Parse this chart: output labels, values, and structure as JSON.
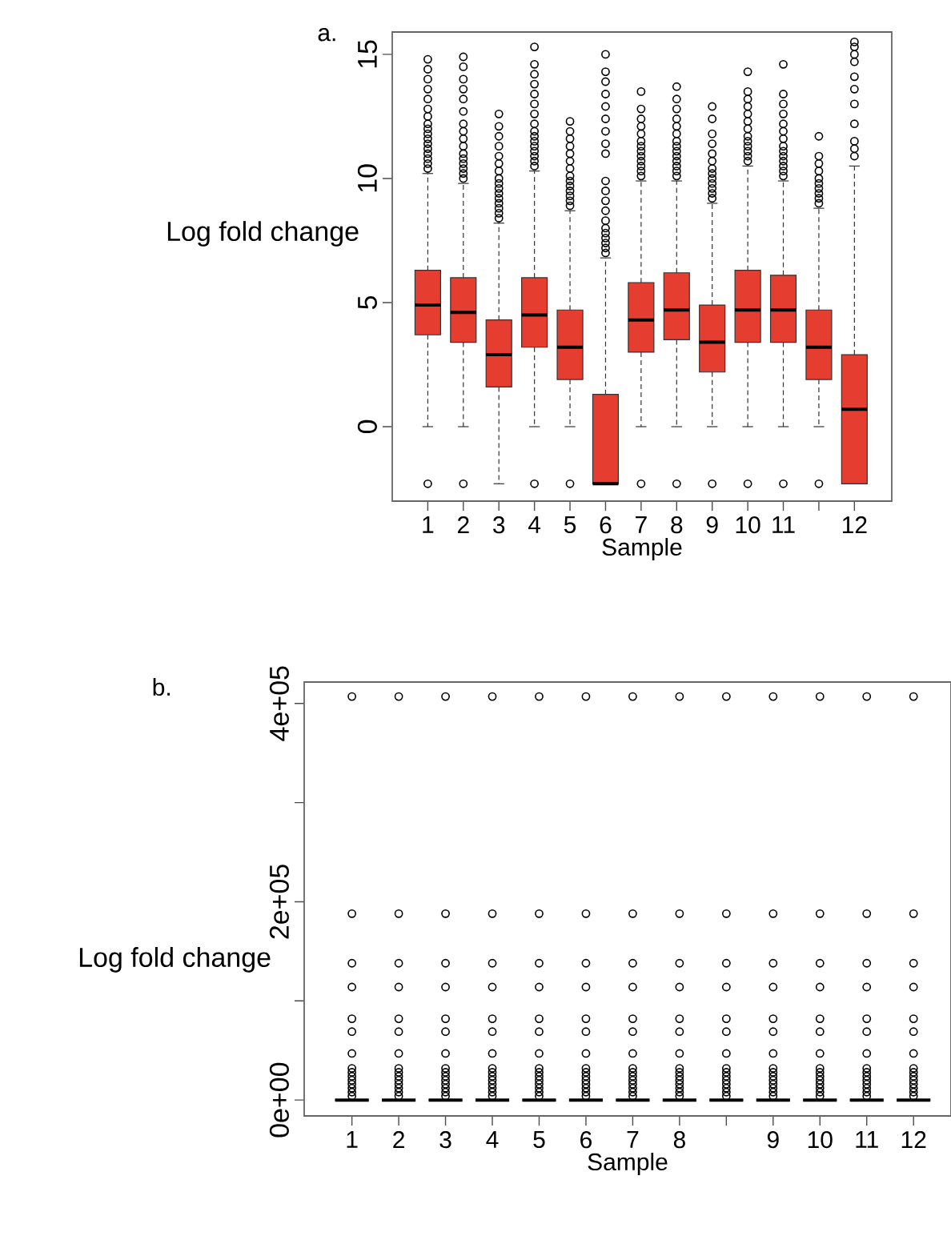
{
  "chart_data": [
    {
      "type": "box",
      "title": "a.",
      "xlabel": "Sample",
      "ylabel": "Log fold change",
      "color": "#e53e30",
      "categories": [
        "1",
        "2",
        "3",
        "4",
        "5",
        "6",
        "7",
        "8",
        "9",
        "10",
        "11",
        null,
        "12"
      ],
      "ylim": [
        -3,
        15.9
      ],
      "yticks": [
        0,
        5,
        10,
        15
      ],
      "boxes": [
        {
          "low": 0,
          "q1": 3.7,
          "median": 4.9,
          "q3": 6.3,
          "high": 10.2,
          "outliers": [
            -2.3,
            10.4,
            10.6,
            10.8,
            11,
            11.2,
            11.4,
            11.6,
            11.8,
            12,
            12.2,
            12.5,
            12.8,
            13.2,
            13.6,
            14,
            14.4,
            14.8
          ]
        },
        {
          "low": 0,
          "q1": 3.4,
          "median": 4.6,
          "q3": 6.0,
          "high": 9.8,
          "outliers": [
            -2.3,
            10,
            10.2,
            10.4,
            10.6,
            10.8,
            11,
            11.3,
            11.6,
            11.9,
            12.2,
            12.7,
            13.2,
            13.6,
            14,
            14.5,
            14.9
          ]
        },
        {
          "low": -2.3,
          "q1": 1.6,
          "median": 2.9,
          "q3": 4.3,
          "high": 8.2,
          "outliers": [
            8.4,
            8.6,
            8.8,
            9,
            9.2,
            9.4,
            9.6,
            9.8,
            10,
            10.3,
            10.6,
            10.9,
            11.3,
            11.7,
            12.1,
            12.6
          ]
        },
        {
          "low": 0,
          "q1": 3.2,
          "median": 4.5,
          "q3": 6.0,
          "high": 10.3,
          "outliers": [
            -2.3,
            10.5,
            10.7,
            10.9,
            11.1,
            11.3,
            11.5,
            11.7,
            11.9,
            12.2,
            12.6,
            13,
            13.4,
            13.8,
            14.2,
            14.6,
            15.3
          ]
        },
        {
          "low": 0,
          "q1": 1.9,
          "median": 3.2,
          "q3": 4.7,
          "high": 8.7,
          "outliers": [
            -2.3,
            8.9,
            9.1,
            9.3,
            9.5,
            9.7,
            9.9,
            10.1,
            10.4,
            10.7,
            11,
            11.3,
            11.6,
            11.9,
            12.3
          ]
        },
        {
          "low": -2.3,
          "q1": -2.3,
          "median": -2.3,
          "q3": 1.3,
          "high": 6.8,
          "outliers": [
            7,
            7.2,
            7.4,
            7.6,
            7.8,
            8,
            8.3,
            8.7,
            9.1,
            9.5,
            9.9,
            11,
            11.4,
            11.9,
            12.4,
            12.9,
            13.4,
            13.9,
            14.3,
            15
          ]
        },
        {
          "low": 0,
          "q1": 3.0,
          "median": 4.3,
          "q3": 5.8,
          "high": 9.9,
          "outliers": [
            -2.3,
            10.1,
            10.3,
            10.5,
            10.7,
            10.9,
            11.1,
            11.3,
            11.5,
            11.8,
            12.1,
            12.4,
            12.8,
            13.5
          ]
        },
        {
          "low": 0,
          "q1": 3.5,
          "median": 4.7,
          "q3": 6.2,
          "high": 9.9,
          "outliers": [
            -2.3,
            10.1,
            10.3,
            10.5,
            10.7,
            10.9,
            11.1,
            11.3,
            11.5,
            11.8,
            12.1,
            12.4,
            12.8,
            13.2,
            13.7
          ]
        },
        {
          "low": 0,
          "q1": 2.2,
          "median": 3.4,
          "q3": 4.9,
          "high": 9.0,
          "outliers": [
            -2.3,
            9.2,
            9.4,
            9.6,
            9.8,
            10,
            10.2,
            10.4,
            10.7,
            11,
            11.4,
            11.8,
            12.4,
            12.9
          ]
        },
        {
          "low": 0,
          "q1": 3.4,
          "median": 4.7,
          "q3": 6.3,
          "high": 10.5,
          "outliers": [
            -2.3,
            10.7,
            10.9,
            11.1,
            11.3,
            11.5,
            11.7,
            12,
            12.3,
            12.6,
            12.9,
            13.2,
            13.5,
            14.3
          ]
        },
        {
          "low": 0,
          "q1": 3.4,
          "median": 4.7,
          "q3": 6.1,
          "high": 9.9,
          "outliers": [
            -2.3,
            10.1,
            10.3,
            10.5,
            10.7,
            10.9,
            11.1,
            11.3,
            11.6,
            11.9,
            12.2,
            12.6,
            13,
            13.4,
            14.6
          ]
        },
        {
          "low": 0,
          "q1": 1.9,
          "median": 3.2,
          "q3": 4.7,
          "high": 8.8,
          "outliers": [
            -2.3,
            9,
            9.2,
            9.4,
            9.6,
            9.8,
            10,
            10.3,
            10.6,
            10.9,
            11.7
          ]
        },
        {
          "low": -2.3,
          "q1": -2.3,
          "median": 0.7,
          "q3": 2.9,
          "high": 10.5,
          "outliers": [
            10.9,
            11.2,
            11.5,
            12.2,
            13,
            13.6,
            14.1,
            14.7,
            15,
            15.3,
            15.5
          ]
        }
      ]
    },
    {
      "type": "box",
      "title": "b.",
      "xlabel": "Sample",
      "ylabel": "Log fold change",
      "categories": [
        "1",
        "2",
        "3",
        "4",
        "5",
        "6",
        "7",
        "8",
        null,
        "9",
        "10",
        "11",
        "12"
      ],
      "ylim": [
        -16000,
        421600
      ],
      "yticks": [
        {
          "value": 0,
          "label": "0e+00"
        },
        {
          "value": 100000,
          "label": null
        },
        {
          "value": 200000,
          "label": "2e+05"
        },
        {
          "value": 300000,
          "label": null
        },
        {
          "value": 400000,
          "label": "4e+05"
        }
      ],
      "boxes": [
        {
          "low": 0,
          "q1": 0,
          "median": 0,
          "q3": 0,
          "high": 0,
          "outliers": [
            4000,
            8000,
            12000,
            16000,
            20000,
            24000,
            28000,
            32000,
            47000,
            69000,
            82000,
            114000,
            138000,
            188000,
            407000
          ]
        },
        {
          "low": 0,
          "q1": 0,
          "median": 0,
          "q3": 0,
          "high": 0,
          "outliers": [
            4000,
            8000,
            12000,
            16000,
            20000,
            24000,
            28000,
            32000,
            47000,
            69000,
            82000,
            114000,
            138000,
            188000,
            407000
          ]
        },
        {
          "low": 0,
          "q1": 0,
          "median": 0,
          "q3": 0,
          "high": 0,
          "outliers": [
            4000,
            8000,
            12000,
            16000,
            20000,
            24000,
            28000,
            32000,
            47000,
            69000,
            82000,
            114000,
            138000,
            188000,
            407000
          ]
        },
        {
          "low": 0,
          "q1": 0,
          "median": 0,
          "q3": 0,
          "high": 0,
          "outliers": [
            4000,
            8000,
            12000,
            16000,
            20000,
            24000,
            28000,
            32000,
            47000,
            69000,
            82000,
            114000,
            138000,
            188000,
            407000
          ]
        },
        {
          "low": 0,
          "q1": 0,
          "median": 0,
          "q3": 0,
          "high": 0,
          "outliers": [
            4000,
            8000,
            12000,
            16000,
            20000,
            24000,
            28000,
            32000,
            47000,
            69000,
            82000,
            114000,
            138000,
            188000,
            407000
          ]
        },
        {
          "low": 0,
          "q1": 0,
          "median": 0,
          "q3": 0,
          "high": 0,
          "outliers": [
            4000,
            8000,
            12000,
            16000,
            20000,
            24000,
            28000,
            32000,
            47000,
            69000,
            82000,
            114000,
            138000,
            188000,
            407000
          ]
        },
        {
          "low": 0,
          "q1": 0,
          "median": 0,
          "q3": 0,
          "high": 0,
          "outliers": [
            4000,
            8000,
            12000,
            16000,
            20000,
            24000,
            28000,
            32000,
            47000,
            69000,
            82000,
            114000,
            138000,
            188000,
            407000
          ]
        },
        {
          "low": 0,
          "q1": 0,
          "median": 0,
          "q3": 0,
          "high": 0,
          "outliers": [
            4000,
            8000,
            12000,
            16000,
            20000,
            24000,
            28000,
            32000,
            47000,
            69000,
            82000,
            114000,
            138000,
            188000,
            407000
          ]
        },
        {
          "low": 0,
          "q1": 0,
          "median": 0,
          "q3": 0,
          "high": 0,
          "outliers": [
            4000,
            8000,
            12000,
            16000,
            20000,
            24000,
            28000,
            32000,
            47000,
            69000,
            82000,
            114000,
            138000,
            188000,
            407000
          ]
        },
        {
          "low": 0,
          "q1": 0,
          "median": 0,
          "q3": 0,
          "high": 0,
          "outliers": [
            4000,
            8000,
            12000,
            16000,
            20000,
            24000,
            28000,
            32000,
            47000,
            69000,
            82000,
            114000,
            138000,
            188000,
            407000
          ]
        },
        {
          "low": 0,
          "q1": 0,
          "median": 0,
          "q3": 0,
          "high": 0,
          "outliers": [
            4000,
            8000,
            12000,
            16000,
            20000,
            24000,
            28000,
            32000,
            47000,
            69000,
            82000,
            114000,
            138000,
            188000,
            407000
          ]
        },
        {
          "low": 0,
          "q1": 0,
          "median": 0,
          "q3": 0,
          "high": 0,
          "outliers": [
            4000,
            8000,
            12000,
            16000,
            20000,
            24000,
            28000,
            32000,
            47000,
            69000,
            82000,
            114000,
            138000,
            188000,
            407000
          ]
        },
        {
          "low": 0,
          "q1": 0,
          "median": 0,
          "q3": 0,
          "high": 0,
          "outliers": [
            4000,
            8000,
            12000,
            16000,
            20000,
            24000,
            28000,
            32000,
            47000,
            69000,
            82000,
            114000,
            138000,
            188000,
            407000
          ]
        }
      ]
    }
  ]
}
